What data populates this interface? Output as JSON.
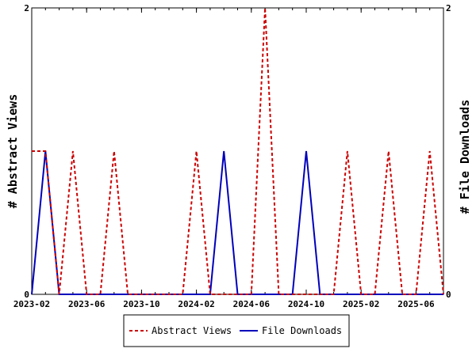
{
  "chart_data": {
    "type": "line",
    "x_type": "date",
    "x_start": "2023-02",
    "x_end": "2025-08",
    "x_ticks": [
      "2023-02",
      "2023-06",
      "2023-10",
      "2024-02",
      "2024-06",
      "2024-10",
      "2025-02",
      "2025-06"
    ],
    "ylabel_left": "# Abstract Views",
    "ylabel_right": "# File Downloads",
    "ylim_left": [
      0,
      2
    ],
    "ylim_right": [
      0,
      2
    ],
    "y_ticks_left": [
      "0",
      "2"
    ],
    "y_ticks_right": [
      "0",
      "2"
    ],
    "grid": false,
    "legend_position": "bottom",
    "series": [
      {
        "name": "Abstract Views",
        "axis": "left",
        "color": "#cc0000",
        "style": "dashed",
        "x": [
          "2023-02",
          "2023-03",
          "2023-04",
          "2023-05",
          "2023-06",
          "2023-07",
          "2023-08",
          "2023-09",
          "2023-10",
          "2023-11",
          "2023-12",
          "2024-01",
          "2024-02",
          "2024-03",
          "2024-04",
          "2024-05",
          "2024-06",
          "2024-07",
          "2024-08",
          "2024-09",
          "2024-10",
          "2024-11",
          "2024-12",
          "2025-01",
          "2025-02",
          "2025-03",
          "2025-04",
          "2025-05",
          "2025-06",
          "2025-07",
          "2025-08"
        ],
        "values": [
          1,
          1,
          0,
          1,
          0,
          0,
          1,
          0,
          0,
          0,
          0,
          0,
          1,
          0,
          0,
          0,
          0,
          2,
          0,
          0,
          0,
          0,
          0,
          1,
          0,
          0,
          1,
          0,
          0,
          1,
          0
        ]
      },
      {
        "name": "File Downloads",
        "axis": "right",
        "color": "#0000bb",
        "style": "solid",
        "x": [
          "2023-02",
          "2023-03",
          "2023-04",
          "2023-05",
          "2023-06",
          "2023-07",
          "2023-08",
          "2023-09",
          "2023-10",
          "2023-11",
          "2023-12",
          "2024-01",
          "2024-02",
          "2024-03",
          "2024-04",
          "2024-05",
          "2024-06",
          "2024-07",
          "2024-08",
          "2024-09",
          "2024-10",
          "2024-11",
          "2024-12",
          "2025-01",
          "2025-02",
          "2025-03",
          "2025-04",
          "2025-05",
          "2025-06",
          "2025-07",
          "2025-08"
        ],
        "values": [
          0,
          1,
          0,
          0,
          0,
          0,
          0,
          0,
          0,
          0,
          0,
          0,
          0,
          0,
          1,
          0,
          0,
          0,
          0,
          0,
          1,
          0,
          0,
          0,
          0,
          0,
          0,
          0,
          0,
          0,
          0
        ]
      }
    ]
  }
}
